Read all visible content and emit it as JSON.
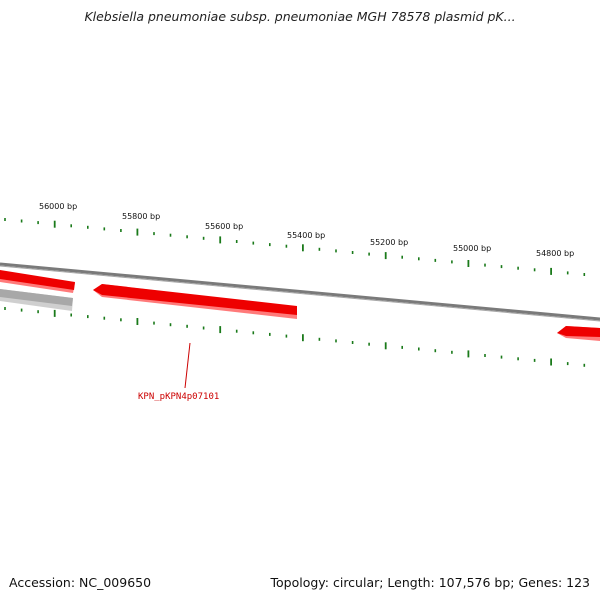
{
  "title": "Klebsiella pneumoniae subsp. pneumoniae MGH 78578 plasmid pK...",
  "footer": {
    "accession": "Accession: NC_009650",
    "summary": "Topology: circular; Length: 107,576 bp; Genes: 123"
  },
  "ruler_labels": [
    "56000 bp",
    "55800 bp",
    "55600 bp",
    "55400 bp",
    "55200 bp",
    "55000 bp",
    "54800 bp"
  ],
  "features": [
    {
      "kind": "gene",
      "label": ""
    },
    {
      "kind": "gene",
      "label": "KPN_pKPN4p07101"
    },
    {
      "kind": "gene",
      "label": ""
    },
    {
      "kind": "pseudogene",
      "label": ""
    }
  ],
  "colors": {
    "tick": "#1a7a1a",
    "backbone": "#7a7a7a",
    "gene": "#ee0000",
    "gene_shade": "#ff7a7a",
    "pseudogene": "#b4b4b4",
    "label": "#cc0000"
  }
}
